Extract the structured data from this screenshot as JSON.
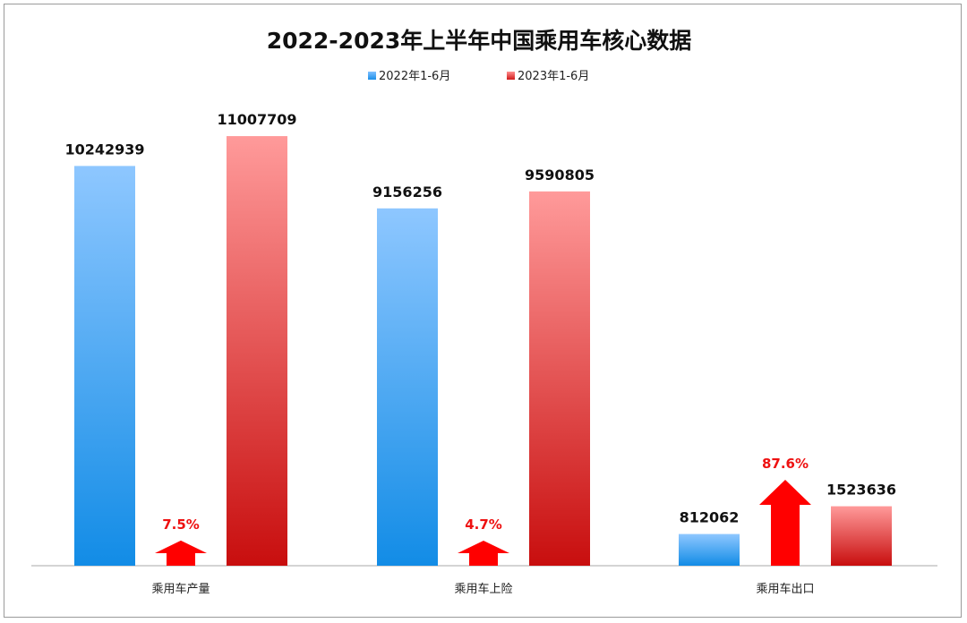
{
  "chart_data": {
    "type": "bar",
    "title": "2022-2023年上半年中国乘用车核心数据",
    "categories": [
      "乘用车产量",
      "乘用车上险",
      "乘用车出口"
    ],
    "series": [
      {
        "name": "2022年1-6月",
        "values": [
          10242939,
          9156256,
          812062
        ],
        "color": "#3a9cf0"
      },
      {
        "name": "2023年1-6月",
        "values": [
          11007709,
          9590805,
          1523636
        ],
        "color": "#e23c3c"
      }
    ],
    "growth": [
      "7.5%",
      "4.7%",
      "87.6%"
    ],
    "growth_values": [
      7.5,
      4.7,
      87.6
    ],
    "value_labels": [
      [
        "10242939",
        "9156256",
        "812062"
      ],
      [
        "11007709",
        "9590805",
        "1523636"
      ]
    ],
    "ylim": [
      0,
      12500000
    ],
    "legend_position": "top-center",
    "grid": false,
    "xlabel": "",
    "ylabel": ""
  }
}
